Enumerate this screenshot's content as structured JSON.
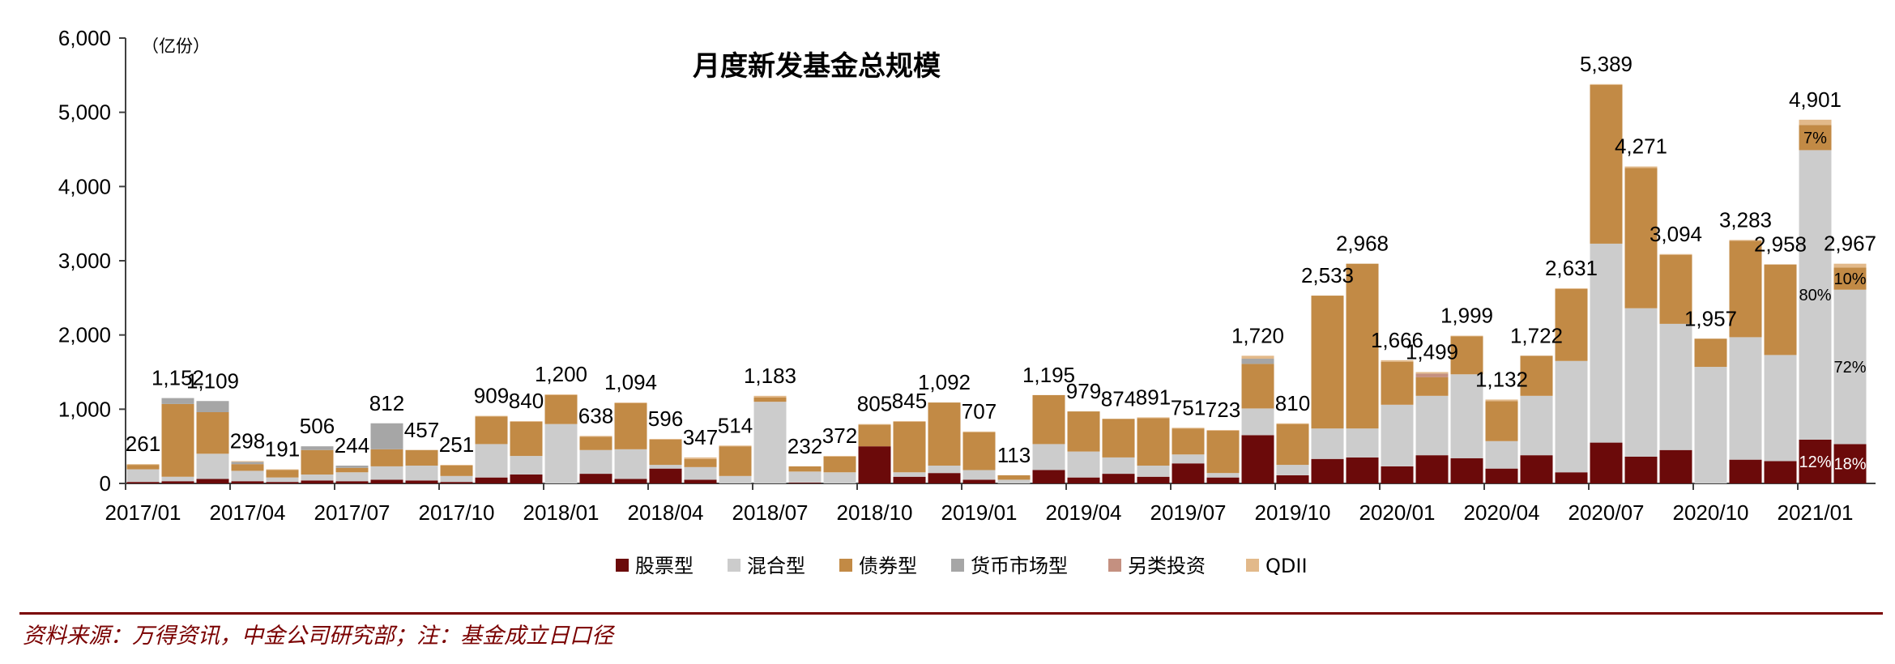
{
  "chart_data": {
    "type": "bar",
    "stacked": true,
    "title": "月度新发基金总规模",
    "unit_label": "（亿份）",
    "ylim": [
      0,
      6000
    ],
    "yticks": [
      "0",
      "1,000",
      "2,000",
      "3,000",
      "4,000",
      "5,000",
      "6,000"
    ],
    "ytick_values": [
      0,
      1000,
      2000,
      3000,
      4000,
      5000,
      6000
    ],
    "xtick_labels": [
      {
        "index": 0,
        "label": "2017/01"
      },
      {
        "index": 3,
        "label": "2017/04"
      },
      {
        "index": 6,
        "label": "2017/07"
      },
      {
        "index": 9,
        "label": "2017/10"
      },
      {
        "index": 12,
        "label": "2018/01"
      },
      {
        "index": 15,
        "label": "2018/04"
      },
      {
        "index": 18,
        "label": "2018/07"
      },
      {
        "index": 21,
        "label": "2018/10"
      },
      {
        "index": 24,
        "label": "2019/01"
      },
      {
        "index": 27,
        "label": "2019/04"
      },
      {
        "index": 30,
        "label": "2019/07"
      },
      {
        "index": 33,
        "label": "2019/10"
      },
      {
        "index": 36,
        "label": "2020/01"
      },
      {
        "index": 39,
        "label": "2020/04"
      },
      {
        "index": 42,
        "label": "2020/07"
      },
      {
        "index": 45,
        "label": "2020/10"
      },
      {
        "index": 48,
        "label": "2021/01"
      }
    ],
    "categories": [
      "2017/01",
      "2017/02",
      "2017/03",
      "2017/04",
      "2017/05",
      "2017/06",
      "2017/07",
      "2017/08",
      "2017/09",
      "2017/10",
      "2017/11",
      "2017/12",
      "2018/01",
      "2018/02",
      "2018/03",
      "2018/04",
      "2018/05",
      "2018/06",
      "2018/07",
      "2018/08",
      "2018/09",
      "2018/10",
      "2018/11",
      "2018/12",
      "2019/01",
      "2019/02",
      "2019/03",
      "2019/04",
      "2019/05",
      "2019/06",
      "2019/07",
      "2019/08",
      "2019/09",
      "2019/10",
      "2019/11",
      "2019/12",
      "2020/01",
      "2020/02",
      "2020/03",
      "2020/04",
      "2020/05",
      "2020/06",
      "2020/07",
      "2020/08",
      "2020/09",
      "2020/10",
      "2020/11",
      "2020/12",
      "2021/01",
      "2021/02"
    ],
    "totals": [
      "261",
      "1,152",
      "1,109",
      "298",
      "191",
      "506",
      "244",
      "812",
      "457",
      "251",
      "909",
      "840",
      "1,200",
      "638",
      "1,094",
      "596",
      "347",
      "514",
      "1,183",
      "232",
      "372",
      "805",
      "845",
      "1,092",
      "707",
      "113",
      "1,195",
      "979",
      "874",
      "891",
      "751",
      "723",
      "1,720",
      "810",
      "2,533",
      "2,968",
      "1,666",
      "1,499",
      "1,999",
      "1,132",
      "1,722",
      "2,631",
      "5,389",
      "4,271",
      "3,094",
      "1,957",
      "3,283",
      "2,958",
      "4,901",
      "2,967"
    ],
    "series": [
      {
        "name": "股票型",
        "color": "#6b0a0a",
        "values": [
          20,
          30,
          60,
          30,
          20,
          40,
          30,
          50,
          40,
          20,
          80,
          120,
          0,
          130,
          60,
          200,
          50,
          0,
          0,
          10,
          0,
          500,
          90,
          140,
          50,
          0,
          180,
          80,
          130,
          90,
          270,
          80,
          650,
          110,
          330,
          350,
          230,
          380,
          340,
          200,
          380,
          150,
          550,
          360,
          450,
          0,
          320,
          300,
          590,
          530
        ]
      },
      {
        "name": "混合型",
        "color": "#cccccc",
        "values": [
          170,
          60,
          340,
          140,
          60,
          80,
          120,
          180,
          200,
          80,
          450,
          250,
          800,
          320,
          400,
          50,
          170,
          100,
          1100,
          150,
          150,
          0,
          60,
          100,
          130,
          50,
          350,
          350,
          220,
          150,
          120,
          60,
          360,
          140,
          410,
          390,
          830,
          800,
          1130,
          370,
          800,
          1500,
          2680,
          2000,
          1700,
          1570,
          1650,
          1430,
          3900,
          2080
        ]
      },
      {
        "name": "债券型",
        "color": "#c28a45",
        "values": [
          60,
          980,
          560,
          90,
          100,
          330,
          60,
          230,
          210,
          140,
          370,
          460,
          390,
          180,
          620,
          340,
          110,
          400,
          60,
          70,
          210,
          290,
          680,
          850,
          510,
          60,
          660,
          540,
          520,
          640,
          350,
          570,
          600,
          550,
          1790,
          2220,
          580,
          250,
          510,
          540,
          540,
          970,
          2140,
          1890,
          930,
          380,
          1300,
          1220,
          340,
          300
        ]
      },
      {
        "name": "货币市场型",
        "color": "#a6a6a6",
        "values": [
          0,
          80,
          150,
          30,
          0,
          50,
          30,
          350,
          0,
          0,
          0,
          0,
          0,
          0,
          0,
          0,
          0,
          0,
          0,
          0,
          0,
          0,
          0,
          0,
          0,
          0,
          0,
          0,
          0,
          0,
          0,
          0,
          70,
          0,
          0,
          0,
          0,
          0,
          0,
          0,
          0,
          0,
          0,
          0,
          0,
          0,
          0,
          0,
          0,
          0
        ]
      },
      {
        "name": "另类投资",
        "color": "#c49080",
        "values": [
          0,
          0,
          0,
          0,
          0,
          0,
          0,
          0,
          0,
          0,
          0,
          0,
          0,
          0,
          0,
          0,
          0,
          0,
          0,
          0,
          0,
          0,
          0,
          0,
          0,
          0,
          0,
          0,
          0,
          0,
          0,
          0,
          0,
          0,
          0,
          0,
          0,
          50,
          0,
          0,
          0,
          0,
          0,
          0,
          0,
          0,
          0,
          0,
          0,
          0
        ]
      },
      {
        "name": "QDII",
        "color": "#e2b98a",
        "values": [
          10,
          0,
          0,
          10,
          10,
          0,
          0,
          0,
          0,
          10,
          10,
          10,
          10,
          10,
          10,
          10,
          20,
          10,
          20,
          0,
          10,
          10,
          10,
          0,
          10,
          0,
          0,
          0,
          0,
          10,
          10,
          10,
          40,
          10,
          0,
          0,
          20,
          20,
          10,
          20,
          0,
          10,
          10,
          20,
          10,
          0,
          10,
          0,
          70,
          50
        ]
      }
    ],
    "annotations": [
      {
        "index": 48,
        "segment": 0,
        "text": "12%"
      },
      {
        "index": 48,
        "segment": 1,
        "text": "80%"
      },
      {
        "index": 48,
        "segment": 2,
        "text": "7%"
      },
      {
        "index": 49,
        "segment": 0,
        "text": "18%"
      },
      {
        "index": 49,
        "segment": 1,
        "text": "72%"
      },
      {
        "index": 49,
        "segment": 2,
        "text": "10%"
      }
    ],
    "legend_position": "bottom-center"
  },
  "source_note": "资料来源：万得资讯，中金公司研究部；注：基金成立日口径"
}
